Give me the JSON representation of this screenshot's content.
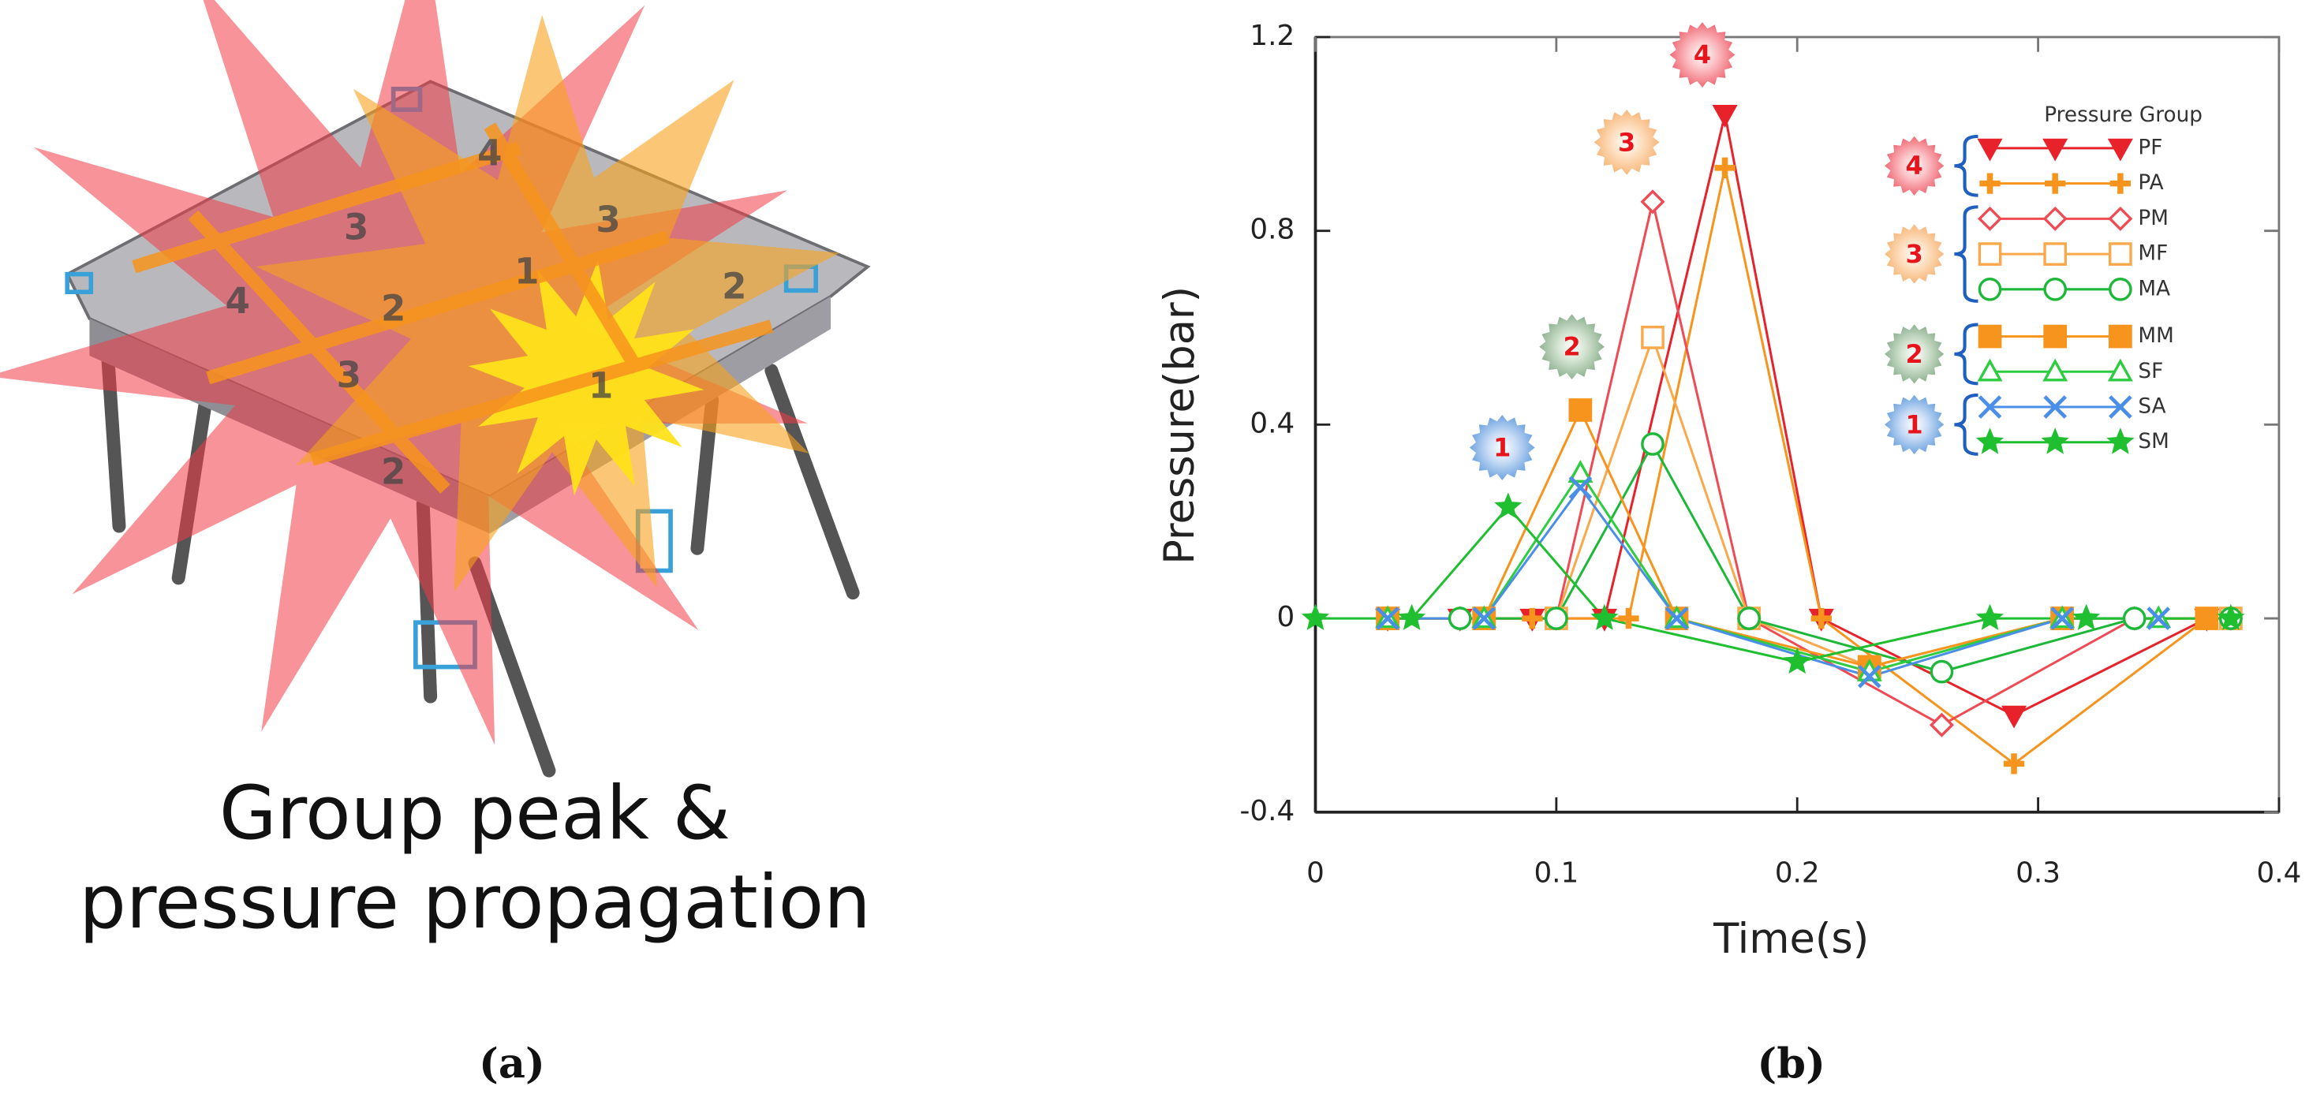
{
  "panel_a": {
    "caption_lines": [
      "Group peak &",
      "pressure propagation"
    ],
    "label": "(a)",
    "zone_labels": [
      "4",
      "3",
      "3",
      "4",
      "2",
      "1",
      "2",
      "3",
      "1",
      "2"
    ]
  },
  "panel_b": {
    "label": "(b)"
  },
  "chart_data": {
    "type": "line",
    "x_label": "Time(s)",
    "y_label": "Pressure(bar)",
    "xlim": [
      0,
      0.4
    ],
    "xticks": [
      0,
      0.1,
      0.2,
      0.3,
      0.4
    ],
    "ylim": [
      -0.4,
      1.2
    ],
    "yticks": [
      -0.4,
      0,
      0.4,
      0.8,
      1.2
    ],
    "grid": false,
    "legend_title": "Pressure Group",
    "legend_position": "upper right",
    "badge_labels": [
      "1",
      "2",
      "3",
      "4"
    ],
    "series": [
      {
        "name": "PF",
        "color": "#e8222a",
        "marker": "triangle-down",
        "filled": true,
        "x": [
          0.03,
          0.06,
          0.09,
          0.12,
          0.17,
          0.21,
          0.29,
          0.37
        ],
        "values": [
          0,
          0,
          0,
          0,
          1.04,
          0,
          -0.2,
          0
        ]
      },
      {
        "name": "PA",
        "color": "#f7941d",
        "marker": "plus",
        "filled": true,
        "x": [
          0.03,
          0.06,
          0.09,
          0.13,
          0.17,
          0.21,
          0.29,
          0.37
        ],
        "values": [
          0,
          0,
          0,
          0,
          0.93,
          0,
          -0.3,
          0
        ]
      },
      {
        "name": "PM",
        "color": "#ef4b55",
        "marker": "diamond",
        "filled": false,
        "x": [
          0.03,
          0.06,
          0.1,
          0.14,
          0.18,
          0.26,
          0.34,
          0.38
        ],
        "values": [
          0,
          0,
          0,
          0.86,
          0,
          -0.22,
          0,
          0
        ]
      },
      {
        "name": "MF",
        "color": "#f9a94b",
        "marker": "square",
        "filled": false,
        "x": [
          0.03,
          0.07,
          0.1,
          0.14,
          0.18,
          0.23,
          0.31,
          0.38
        ],
        "values": [
          0,
          0,
          0,
          0.58,
          0,
          -0.1,
          0,
          0
        ]
      },
      {
        "name": "MA",
        "color": "#1db83a",
        "marker": "circle",
        "filled": false,
        "x": [
          0.06,
          0.1,
          0.14,
          0.18,
          0.26,
          0.34,
          0.38
        ],
        "values": [
          0,
          0,
          0.36,
          0,
          -0.11,
          0,
          0
        ]
      },
      {
        "name": "MM",
        "color": "#f7941d",
        "marker": "square",
        "filled": true,
        "x": [
          0.03,
          0.07,
          0.11,
          0.15,
          0.23,
          0.31,
          0.37
        ],
        "values": [
          0,
          0,
          0.43,
          0,
          -0.1,
          0,
          0
        ]
      },
      {
        "name": "SF",
        "color": "#2ecc40",
        "marker": "triangle-up",
        "filled": false,
        "x": [
          0.03,
          0.07,
          0.11,
          0.15,
          0.23,
          0.31,
          0.35
        ],
        "values": [
          0,
          0,
          0.3,
          0,
          -0.11,
          0,
          0
        ]
      },
      {
        "name": "SA",
        "color": "#4a8fe7",
        "marker": "x",
        "filled": false,
        "x": [
          0.03,
          0.07,
          0.11,
          0.15,
          0.23,
          0.31,
          0.35
        ],
        "values": [
          0,
          0,
          0.27,
          0,
          -0.12,
          0,
          0
        ]
      },
      {
        "name": "SM",
        "color": "#1fbf30",
        "marker": "star",
        "filled": true,
        "x": [
          0,
          0.04,
          0.08,
          0.12,
          0.2,
          0.28,
          0.32,
          0.38
        ],
        "values": [
          0,
          0,
          0.23,
          0,
          -0.09,
          0,
          0,
          0
        ]
      }
    ]
  }
}
